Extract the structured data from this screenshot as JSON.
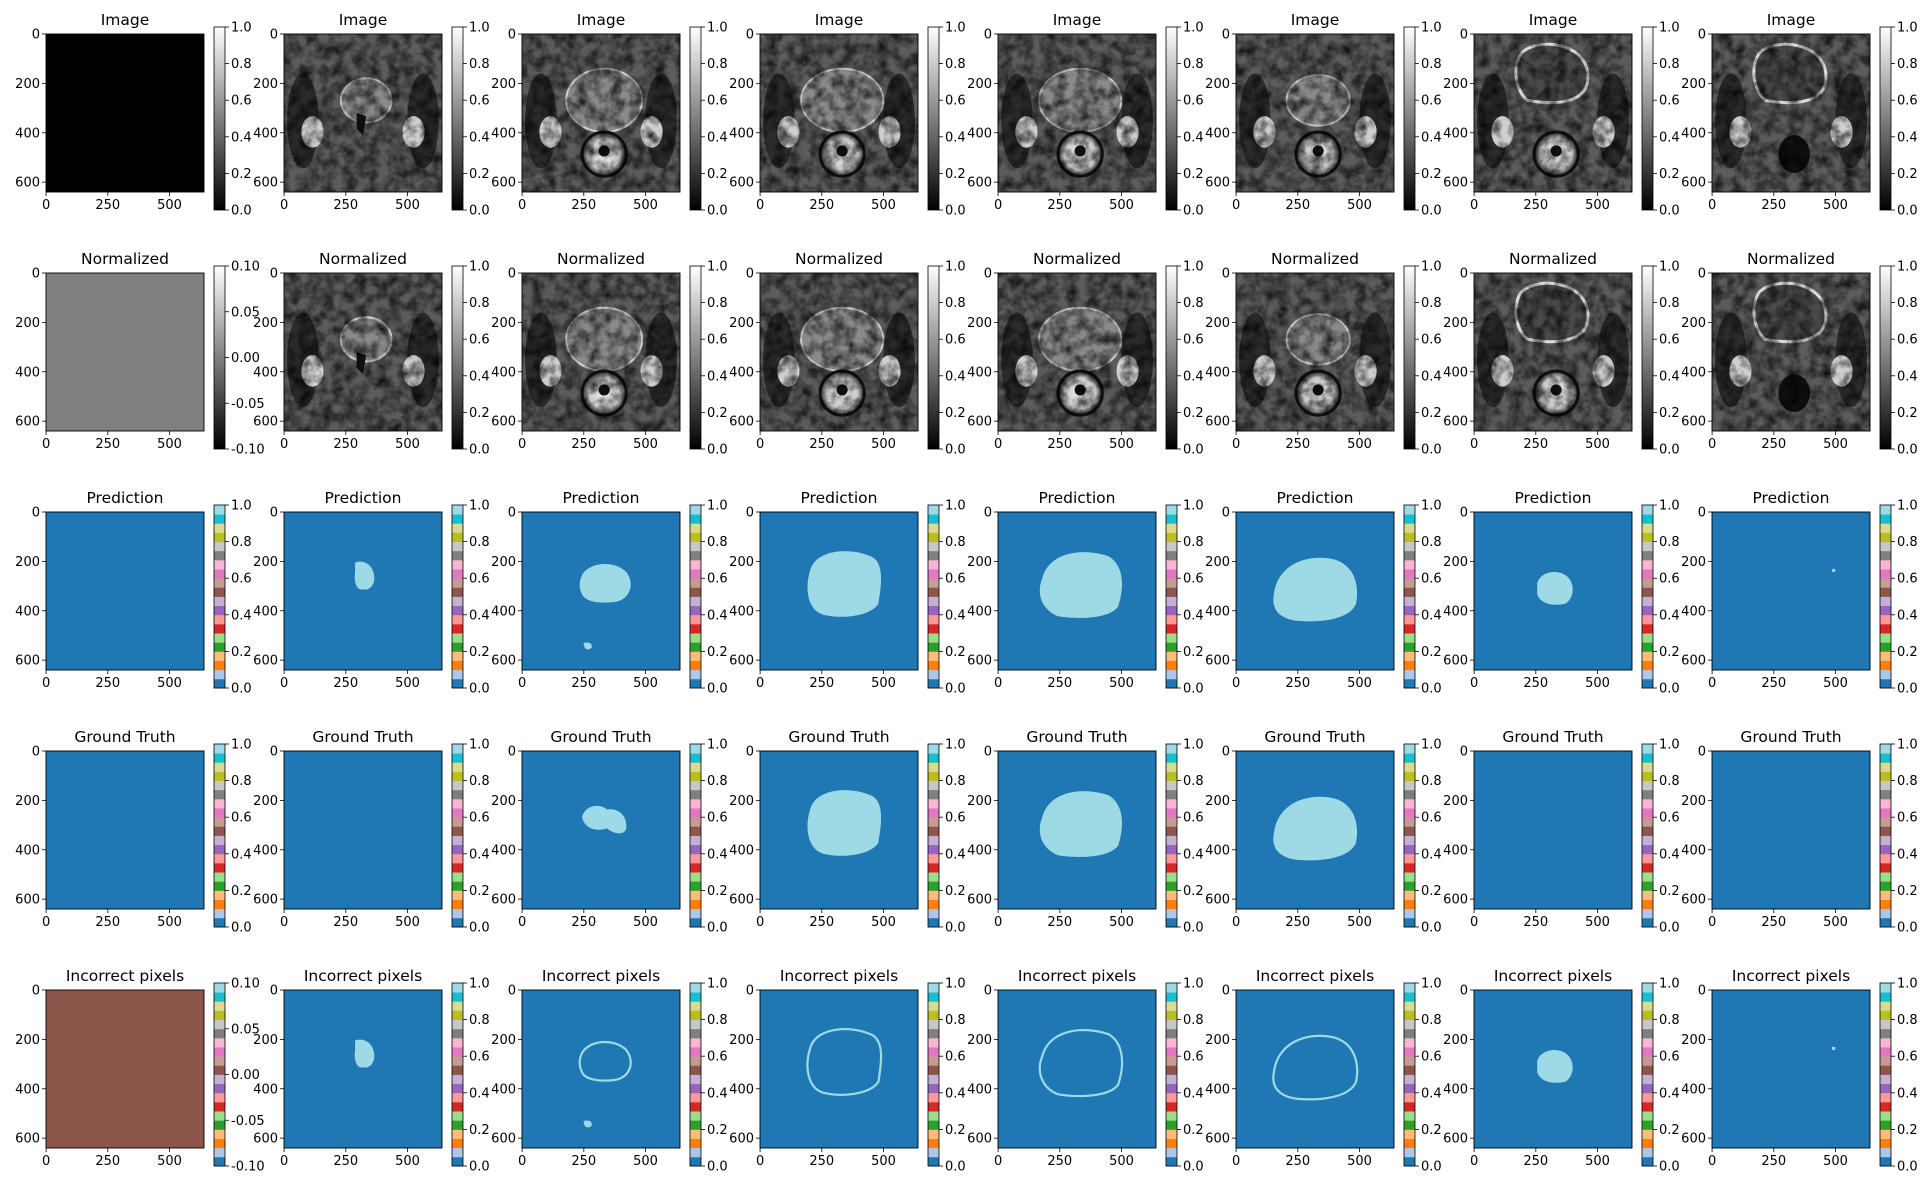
{
  "figure": {
    "rows": [
      {
        "title": "Image",
        "cmap": "gray",
        "cbar_ticks": [
          [
            "0.0",
            "0.2",
            "0.4",
            "0.6",
            "0.8",
            "1.0"
          ]
        ]
      },
      {
        "title": "Normalized",
        "cmap": "gray",
        "cbar_ticks": [
          [
            "-0.10",
            "-0.05",
            "0.00",
            "0.05",
            "0.10"
          ],
          [
            "0.0",
            "0.2",
            "0.4",
            "0.6",
            "0.8",
            "1.0"
          ]
        ]
      },
      {
        "title": "Prediction",
        "cmap": "tab20",
        "cbar_ticks": [
          [
            "0.0",
            "0.2",
            "0.4",
            "0.6",
            "0.8",
            "1.0"
          ]
        ]
      },
      {
        "title": "Ground Truth",
        "cmap": "tab20",
        "cbar_ticks": [
          [
            "0.0",
            "0.2",
            "0.4",
            "0.6",
            "0.8",
            "1.0"
          ]
        ]
      },
      {
        "title": "Incorrect pixels",
        "cmap": "tab20",
        "cbar_ticks": [
          [
            "-0.10",
            "-0.05",
            "0.00",
            "0.05",
            "0.10"
          ],
          [
            "0.0",
            "0.2",
            "0.4",
            "0.6",
            "0.8",
            "1.0"
          ]
        ]
      }
    ],
    "x_ticks": [
      "0",
      "250",
      "500"
    ],
    "y_ticks": [
      "0",
      "200",
      "400",
      "600"
    ],
    "colors": {
      "mask_background": "#1f77b4",
      "mask_foreground": "#9edae5",
      "incorrect_constant": "#8c564b",
      "normalized_constant": "#808080",
      "image_black": "#000000"
    },
    "tab20": [
      "#1f77b4",
      "#aec7e8",
      "#ff7f0e",
      "#ffbb78",
      "#2ca02c",
      "#98df8a",
      "#d62728",
      "#ff9896",
      "#9467bd",
      "#c5b0d5",
      "#8c564b",
      "#c49c94",
      "#e377c2",
      "#f7b6d2",
      "#7f7f7f",
      "#c7c7c7",
      "#bcbd22",
      "#dbdb8d",
      "#17becf",
      "#9edae5"
    ]
  },
  "chart_data": {
    "type": "heatmap",
    "grid": {
      "rows": 5,
      "columns": 8
    },
    "image_extent": {
      "x": [
        0,
        640
      ],
      "y": [
        640,
        0
      ]
    },
    "columns": [
      {
        "index": 1,
        "image": "blank (all black)",
        "prediction": "none",
        "ground_truth": "none",
        "incorrect": "constant"
      },
      {
        "index": 2,
        "image": "mri-slice",
        "prediction": "small region",
        "ground_truth": "none",
        "incorrect": "small region"
      },
      {
        "index": 3,
        "image": "mri-slice",
        "prediction": "region + small blob",
        "ground_truth": "region",
        "incorrect": "outline + small blob"
      },
      {
        "index": 4,
        "image": "mri-slice",
        "prediction": "large region",
        "ground_truth": "large region",
        "incorrect": "outline"
      },
      {
        "index": 5,
        "image": "mri-slice",
        "prediction": "large region",
        "ground_truth": "large region",
        "incorrect": "outline"
      },
      {
        "index": 6,
        "image": "mri-slice",
        "prediction": "large region",
        "ground_truth": "large region",
        "incorrect": "outline"
      },
      {
        "index": 7,
        "image": "mri-slice",
        "prediction": "medium region",
        "ground_truth": "none",
        "incorrect": "medium region"
      },
      {
        "index": 8,
        "image": "mri-slice",
        "prediction": "none",
        "ground_truth": "none",
        "incorrect": "none"
      }
    ]
  }
}
